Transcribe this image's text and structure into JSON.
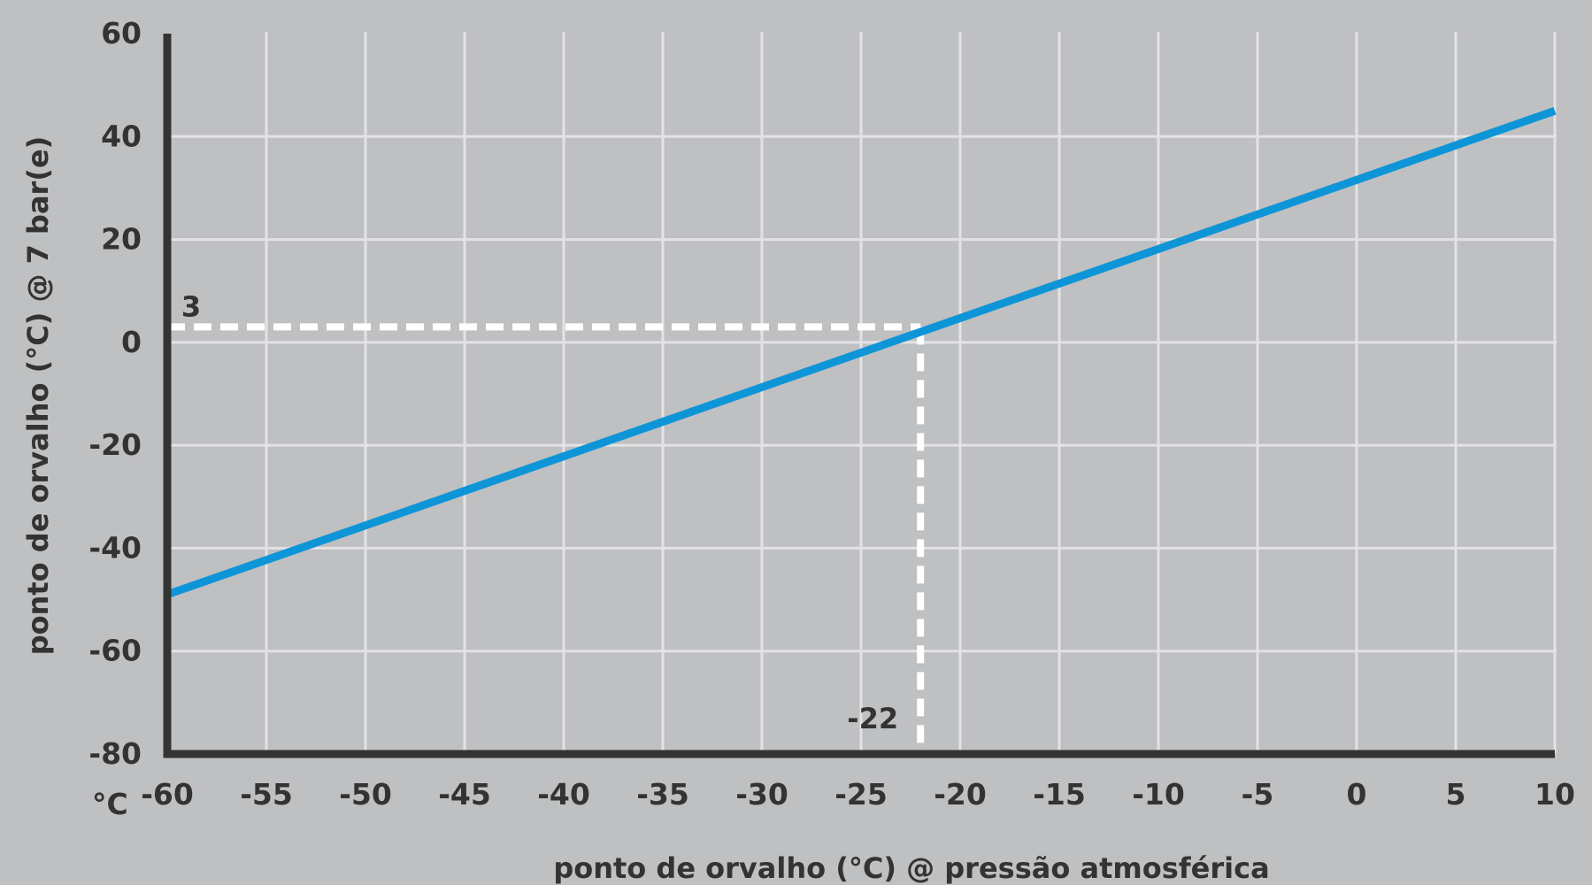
{
  "chart_data": {
    "type": "line",
    "xlabel": "ponto de orvalho  (°C) @ pressão atmosférica",
    "ylabel": "ponto de orvalho (°C) @ 7 bar(e)",
    "unit_label": "°C",
    "xlim": [
      -60,
      10
    ],
    "ylim": [
      -80,
      60
    ],
    "x_ticks": [
      -60,
      -55,
      -50,
      -45,
      -40,
      -35,
      -30,
      -25,
      -20,
      -15,
      -10,
      -5,
      0,
      5,
      10
    ],
    "y_ticks": [
      60,
      40,
      20,
      0,
      -20,
      -40,
      -60,
      -80
    ],
    "grid": true,
    "series": [
      {
        "x": [
          -60,
          10
        ],
        "y": [
          -49,
          45
        ]
      }
    ],
    "annotations": [
      {
        "x": -22,
        "y": 3,
        "x_label": "-22",
        "y_label": "3"
      }
    ],
    "colors": {
      "background": "#bfc0c2",
      "grid": "#e3e3e5",
      "axis": "#333333",
      "line": "#0d95d8",
      "annotation": "#ffffff"
    }
  }
}
